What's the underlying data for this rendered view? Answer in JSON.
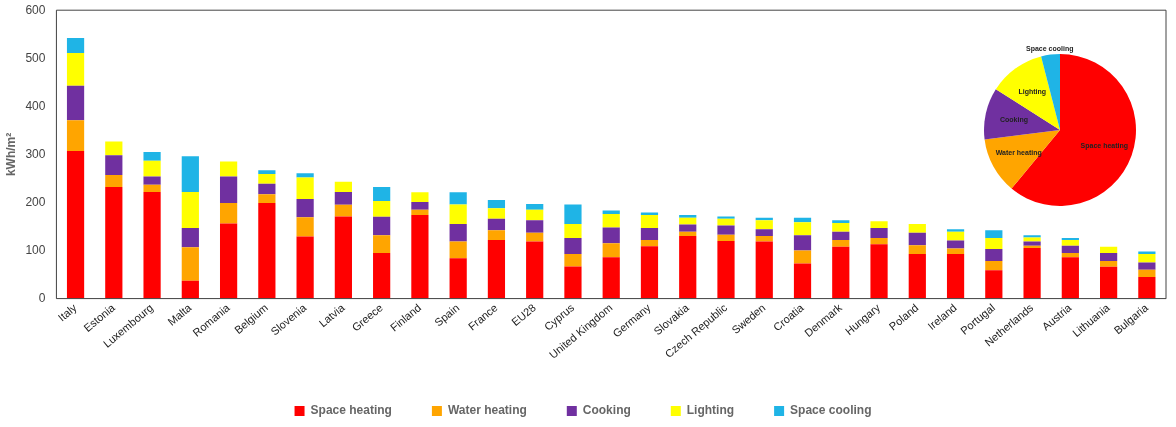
{
  "chart_data": [
    {
      "type": "bar",
      "ylabel": "kWh/m²",
      "stacked": true,
      "categories": [
        "Italy",
        "Estonia",
        "Luxembourg",
        "Malta",
        "Romania",
        "Belgium",
        "Slovenia",
        "Latvia",
        "Greece",
        "Finland",
        "Spain",
        "France",
        "EU28",
        "Cyprus",
        "United Kingdom",
        "Germany",
        "Slovakia",
        "Czech Republic",
        "Sweden",
        "Croatia",
        "Denmark",
        "Hungary",
        "Poland",
        "Ireland",
        "Portugal",
        "Netherlands",
        "Austria",
        "Lithuania",
        "Bulgaria"
      ],
      "series": [
        {
          "name": "Space heating",
          "color": "#ff0000",
          "values": [
            307,
            232,
            222,
            37,
            156,
            199,
            129,
            171,
            95,
            174,
            84,
            122,
            119,
            67,
            86,
            109,
            130,
            120,
            119,
            73,
            108,
            113,
            93,
            93,
            59,
            105,
            86,
            66,
            45
          ]
        },
        {
          "name": "Water heating",
          "color": "#ffa500",
          "values": [
            64,
            25,
            15,
            70,
            43,
            18,
            40,
            24,
            37,
            11,
            35,
            20,
            18,
            26,
            29,
            13,
            9,
            13,
            11,
            27,
            14,
            13,
            18,
            11,
            19,
            5,
            9,
            12,
            15
          ]
        },
        {
          "name": "Cooking",
          "color": "#7030a0",
          "values": [
            72,
            41,
            17,
            40,
            55,
            22,
            38,
            27,
            38,
            16,
            36,
            24,
            26,
            33,
            33,
            25,
            15,
            19,
            14,
            32,
            17,
            21,
            26,
            17,
            25,
            9,
            15,
            17,
            15
          ]
        },
        {
          "name": "Lighting",
          "color": "#ffff00",
          "values": [
            68,
            29,
            33,
            75,
            31,
            20,
            45,
            21,
            33,
            20,
            41,
            22,
            22,
            29,
            28,
            27,
            14,
            14,
            19,
            27,
            18,
            14,
            18,
            18,
            23,
            8,
            12,
            13,
            18
          ]
        },
        {
          "name": "Space cooling",
          "color": "#1fb4e6",
          "values": [
            31,
            0,
            18,
            74,
            0,
            8,
            9,
            0,
            29,
            0,
            25,
            17,
            12,
            41,
            7,
            5,
            6,
            5,
            5,
            9,
            6,
            0,
            0,
            5,
            16,
            5,
            4,
            0,
            5
          ]
        }
      ],
      "ylim": [
        0,
        600
      ],
      "yticks": [
        0,
        100,
        200,
        300,
        400,
        500,
        600
      ],
      "grid": false,
      "legend": "bottom"
    },
    {
      "type": "pie",
      "categories": [
        "Space heating",
        "Water heating",
        "Cooking",
        "Lighting",
        "Space cooling"
      ],
      "values": [
        61,
        12,
        11,
        12,
        4
      ],
      "colors": [
        "#ff0000",
        "#ffa500",
        "#7030a0",
        "#ffff00",
        "#1fb4e6"
      ]
    }
  ]
}
